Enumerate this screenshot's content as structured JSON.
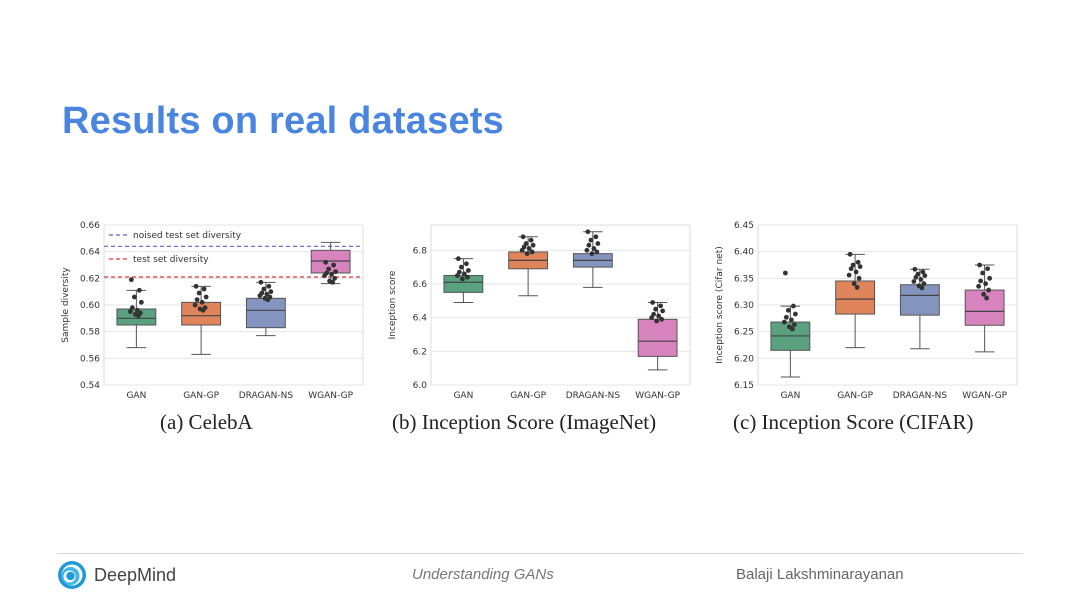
{
  "slide": {
    "title": "Results on real datasets",
    "footer": {
      "brand": "DeepMind",
      "center": "Understanding GANs",
      "author": "Balaji Lakshminarayanan"
    }
  },
  "chart_data": [
    {
      "type": "box",
      "caption": "(a)  CelebA",
      "ylabel": "Sample diversity",
      "ylim": [
        0.54,
        0.66
      ],
      "yticks": [
        "0.54",
        "0.56",
        "0.58",
        "0.60",
        "0.62",
        "0.64",
        "0.66"
      ],
      "categories": [
        "GAN",
        "GAN-GP",
        "DRAGAN-NS",
        "WGAN-GP"
      ],
      "colors": [
        "#5aa17f",
        "#e0855b",
        "#8394bf",
        "#d784be"
      ],
      "grid": true,
      "legend_position": "top-left",
      "reference_lines": [
        {
          "label": "noised test set diversity",
          "value": 0.644,
          "color": "#5a62c9"
        },
        {
          "label": "test set diversity",
          "value": 0.621,
          "color": "#e03333"
        }
      ],
      "boxes": [
        {
          "whislo": 0.568,
          "q1": 0.585,
          "med": 0.59,
          "q3": 0.597,
          "whishi": 0.611,
          "points": [
            0.619,
            0.611,
            0.606,
            0.602,
            0.598,
            0.596,
            0.595,
            0.594,
            0.593,
            0.592
          ]
        },
        {
          "whislo": 0.563,
          "q1": 0.585,
          "med": 0.592,
          "q3": 0.602,
          "whishi": 0.614,
          "points": [
            0.614,
            0.612,
            0.609,
            0.606,
            0.604,
            0.602,
            0.6,
            0.598,
            0.597,
            0.596
          ]
        },
        {
          "whislo": 0.577,
          "q1": 0.583,
          "med": 0.596,
          "q3": 0.605,
          "whishi": 0.617,
          "points": [
            0.617,
            0.614,
            0.612,
            0.61,
            0.609,
            0.608,
            0.607,
            0.606,
            0.605,
            0.604
          ]
        },
        {
          "whislo": 0.616,
          "q1": 0.624,
          "med": 0.633,
          "q3": 0.641,
          "whishi": 0.647,
          "points": [
            0.632,
            0.63,
            0.627,
            0.625,
            0.624,
            0.623,
            0.622,
            0.62,
            0.618,
            0.617
          ]
        }
      ]
    },
    {
      "type": "box",
      "caption": "(b)  Inception Score (ImageNet)",
      "ylabel": "Inception score",
      "ylim": [
        6.0,
        6.95
      ],
      "yticks": [
        "6.0",
        "6.2",
        "6.4",
        "6.6",
        "6.8"
      ],
      "categories": [
        "GAN",
        "GAN-GP",
        "DRAGAN-NS",
        "WGAN-GP"
      ],
      "colors": [
        "#5aa17f",
        "#e0855b",
        "#8394bf",
        "#d784be"
      ],
      "grid": true,
      "boxes": [
        {
          "whislo": 6.49,
          "q1": 6.55,
          "med": 6.61,
          "q3": 6.65,
          "whishi": 6.75,
          "points": [
            6.75,
            6.72,
            6.7,
            6.68,
            6.67,
            6.66,
            6.65,
            6.64,
            6.63
          ]
        },
        {
          "whislo": 6.53,
          "q1": 6.69,
          "med": 6.74,
          "q3": 6.79,
          "whishi": 6.88,
          "points": [
            6.88,
            6.86,
            6.84,
            6.83,
            6.82,
            6.81,
            6.8,
            6.79,
            6.78
          ]
        },
        {
          "whislo": 6.58,
          "q1": 6.7,
          "med": 6.74,
          "q3": 6.78,
          "whishi": 6.91,
          "points": [
            6.91,
            6.88,
            6.86,
            6.84,
            6.83,
            6.81,
            6.8,
            6.79,
            6.78
          ]
        },
        {
          "whislo": 6.09,
          "q1": 6.17,
          "med": 6.26,
          "q3": 6.39,
          "whishi": 6.49,
          "points": [
            6.49,
            6.47,
            6.45,
            6.44,
            6.42,
            6.41,
            6.4,
            6.39,
            6.38
          ]
        }
      ]
    },
    {
      "type": "box",
      "caption": "(c)  Inception Score (CIFAR)",
      "ylabel": "Inception score (Cifar net)",
      "ylim": [
        6.15,
        6.45
      ],
      "yticks": [
        "6.15",
        "6.20",
        "6.25",
        "6.30",
        "6.35",
        "6.40",
        "6.45"
      ],
      "categories": [
        "GAN",
        "GAN-GP",
        "DRAGAN-NS",
        "WGAN-GP"
      ],
      "colors": [
        "#5aa17f",
        "#e0855b",
        "#8394bf",
        "#d784be"
      ],
      "grid": true,
      "boxes": [
        {
          "whislo": 6.165,
          "q1": 6.215,
          "med": 6.242,
          "q3": 6.268,
          "whishi": 6.298,
          "points": [
            6.36,
            6.298,
            6.29,
            6.283,
            6.277,
            6.272,
            6.268,
            6.263,
            6.259,
            6.255
          ]
        },
        {
          "whislo": 6.22,
          "q1": 6.283,
          "med": 6.311,
          "q3": 6.345,
          "whishi": 6.395,
          "points": [
            6.395,
            6.38,
            6.375,
            6.372,
            6.368,
            6.362,
            6.356,
            6.35,
            6.34,
            6.333
          ]
        },
        {
          "whislo": 6.218,
          "q1": 6.281,
          "med": 6.318,
          "q3": 6.338,
          "whishi": 6.367,
          "points": [
            6.367,
            6.362,
            6.358,
            6.355,
            6.352,
            6.348,
            6.344,
            6.34,
            6.336,
            6.332
          ]
        },
        {
          "whislo": 6.212,
          "q1": 6.262,
          "med": 6.288,
          "q3": 6.328,
          "whishi": 6.375,
          "points": [
            6.375,
            6.368,
            6.36,
            6.35,
            6.345,
            6.34,
            6.335,
            6.328,
            6.32,
            6.313
          ]
        }
      ]
    }
  ]
}
